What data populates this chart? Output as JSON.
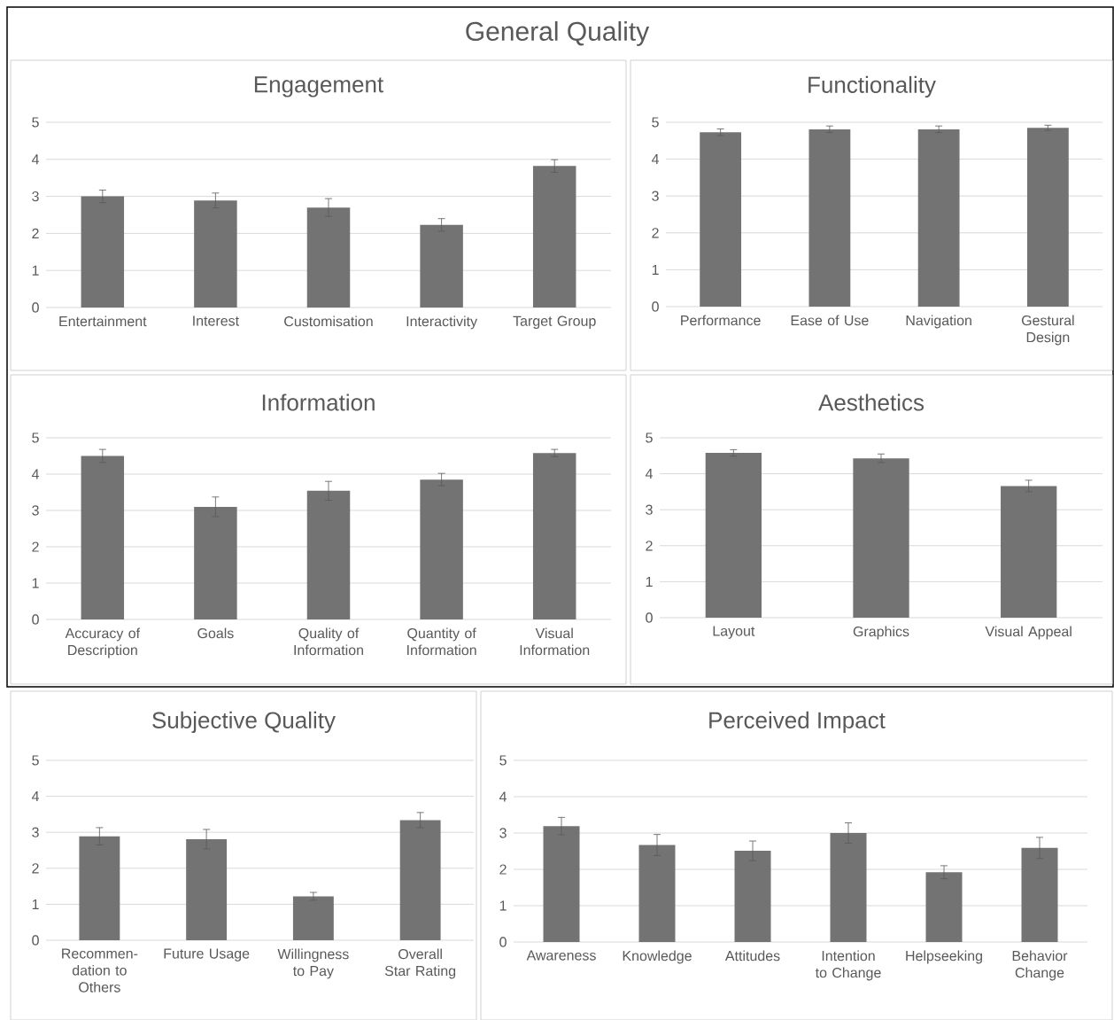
{
  "chart_data": [
    {
      "type": "bar",
      "title": "Engagement",
      "annotations": [
        "General Quality"
      ],
      "categories": [
        "Entertainment",
        "Interest",
        "Customisation",
        "Interactivity",
        "Target Group"
      ],
      "values": [
        3.0,
        2.89,
        2.7,
        2.23,
        3.82
      ],
      "errors": [
        0.17,
        0.2,
        0.24,
        0.17,
        0.17
      ],
      "color": "#737373",
      "ylim": [
        0,
        5
      ],
      "yticks": [
        0,
        1,
        2,
        3,
        4,
        5
      ],
      "grid": "y"
    },
    {
      "type": "bar",
      "title": "Functionality",
      "categories": [
        "Performance",
        "Ease of Use",
        "Navigation",
        "Gestural Design"
      ],
      "values": [
        4.73,
        4.81,
        4.81,
        4.85
      ],
      "errors": [
        0.09,
        0.09,
        0.09,
        0.07
      ],
      "color": "#737373",
      "ylim": [
        0,
        5
      ],
      "yticks": [
        0,
        1,
        2,
        3,
        4,
        5
      ],
      "grid": "y"
    },
    {
      "type": "bar",
      "title": "Information",
      "categories": [
        "Accuracy of Description",
        "Goals",
        "Quality of Information",
        "Quantity of Information",
        "Visual Information"
      ],
      "values": [
        4.5,
        3.1,
        3.54,
        3.85,
        4.58
      ],
      "errors": [
        0.18,
        0.27,
        0.26,
        0.17,
        0.1
      ],
      "color": "#737373",
      "ylim": [
        0,
        5
      ],
      "yticks": [
        0,
        1,
        2,
        3,
        4,
        5
      ],
      "grid": "y"
    },
    {
      "type": "bar",
      "title": "Aesthetics",
      "categories": [
        "Layout",
        "Graphics",
        "Visual Appeal"
      ],
      "values": [
        4.58,
        4.43,
        3.66
      ],
      "errors": [
        0.09,
        0.12,
        0.16
      ],
      "color": "#737373",
      "ylim": [
        0,
        5
      ],
      "yticks": [
        0,
        1,
        2,
        3,
        4,
        5
      ],
      "grid": "y"
    },
    {
      "type": "bar",
      "title": "Subjective Quality",
      "categories": [
        "Recommen-dation to Others",
        "Future Usage",
        "Willingness to Pay",
        "Overall Star Rating"
      ],
      "values": [
        2.89,
        2.81,
        1.22,
        3.34
      ],
      "errors": [
        0.24,
        0.27,
        0.11,
        0.21
      ],
      "color": "#737373",
      "ylim": [
        0,
        5
      ],
      "yticks": [
        0,
        1,
        2,
        3,
        4,
        5
      ],
      "grid": "y"
    },
    {
      "type": "bar",
      "title": "Perceived Impact",
      "categories": [
        "Awareness",
        "Knowledge",
        "Attitudes",
        "Intention to Change",
        "Helpseeking",
        "Behavior Change"
      ],
      "values": [
        3.19,
        2.67,
        2.51,
        3.0,
        1.92,
        2.59
      ],
      "errors": [
        0.24,
        0.29,
        0.27,
        0.28,
        0.18,
        0.29
      ],
      "color": "#737373",
      "ylim": [
        0,
        5
      ],
      "yticks": [
        0,
        1,
        2,
        3,
        4,
        5
      ],
      "grid": "y"
    }
  ]
}
